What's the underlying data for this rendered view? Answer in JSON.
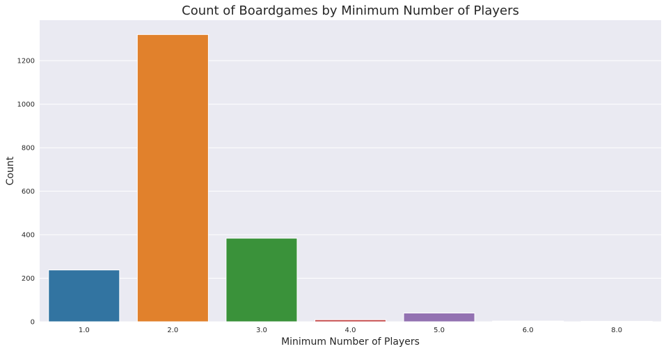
{
  "chart_data": {
    "type": "bar",
    "title": "Count of Boardgames by Minimum Number of Players",
    "xlabel": "Minimum Number of Players",
    "ylabel": "Count",
    "categories": [
      "1.0",
      "2.0",
      "3.0",
      "4.0",
      "5.0",
      "6.0",
      "8.0"
    ],
    "values": [
      238,
      1320,
      384,
      9,
      40,
      3,
      2
    ],
    "colors": [
      "#3274a1",
      "#e1812c",
      "#3a923a",
      "#c03d3e",
      "#9372b2",
      "#845b53",
      "#d684bd"
    ],
    "ylim": [
      0,
      1386
    ],
    "yticks": [
      0,
      200,
      400,
      600,
      800,
      1000,
      1200
    ],
    "ytick_labels": [
      "0",
      "200",
      "400",
      "600",
      "800",
      "1000",
      "1200"
    ],
    "grid": true,
    "background": "#eaeaf2",
    "grid_color": "#ffffff",
    "legend": "none"
  }
}
